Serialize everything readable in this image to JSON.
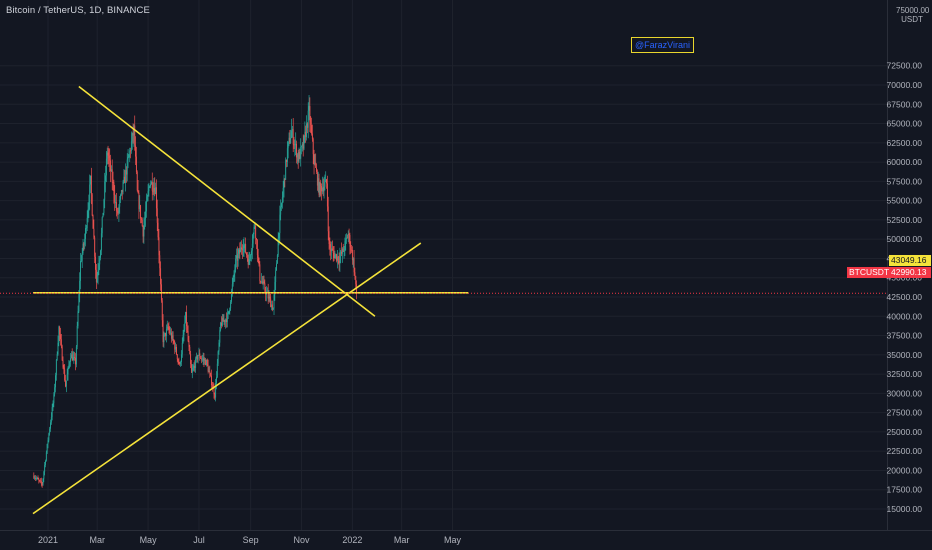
{
  "title": "Bitcoin / TetherUS, 1D, BINANCE",
  "watermark": "@FarazVirani",
  "axis_unit": "USDT",
  "axis_unit_top": "75000.00",
  "price_tags": {
    "level": "43049.16",
    "symbol": "BTCUSDT",
    "last": "42990.13"
  },
  "colors": {
    "background": "#131722",
    "up": "#26a69a",
    "down": "#ef5350",
    "trendline": "#f5e33a",
    "last_price": "#f23645",
    "grid": "#1e222d"
  },
  "chart_data": {
    "type": "candlestick",
    "symbol": "BTCUSDT",
    "interval": "1D",
    "exchange": "BINANCE",
    "x_ticks": [
      "2021",
      "Mar",
      "May",
      "Jul",
      "Sep",
      "Nov",
      "2022",
      "Mar",
      "May"
    ],
    "x_tick_dates": [
      "2021-01-01",
      "2021-03-01",
      "2021-05-01",
      "2021-07-01",
      "2021-09-01",
      "2021-11-01",
      "2022-01-01",
      "2022-03-01",
      "2022-05-01"
    ],
    "y_ticks": [
      15000,
      17500,
      20000,
      22500,
      25000,
      27500,
      30000,
      32500,
      35000,
      37500,
      40000,
      42500,
      45000,
      47500,
      50000,
      52500,
      55000,
      57500,
      60000,
      62500,
      65000,
      67500,
      70000,
      72500
    ],
    "y_range": [
      12500,
      76000
    ],
    "grid": true,
    "price_path": [
      [
        "2020-12-15",
        19300
      ],
      [
        "2020-12-25",
        18200
      ],
      [
        "2021-01-01",
        24000
      ],
      [
        "2021-01-08",
        29500
      ],
      [
        "2021-01-14",
        38500
      ],
      [
        "2021-01-22",
        31000
      ],
      [
        "2021-01-28",
        35000
      ],
      [
        "2021-02-03",
        34000
      ],
      [
        "2021-02-09",
        47000
      ],
      [
        "2021-02-14",
        50000
      ],
      [
        "2021-02-21",
        57500
      ],
      [
        "2021-02-28",
        44500
      ],
      [
        "2021-03-05",
        49000
      ],
      [
        "2021-03-13",
        61500
      ],
      [
        "2021-03-20",
        57000
      ],
      [
        "2021-03-25",
        53000
      ],
      [
        "2021-04-05",
        59000
      ],
      [
        "2021-04-14",
        64200
      ],
      [
        "2021-04-18",
        56000
      ],
      [
        "2021-04-25",
        51000
      ],
      [
        "2021-05-03",
        57500
      ],
      [
        "2021-05-10",
        56500
      ],
      [
        "2021-05-13",
        50500
      ],
      [
        "2021-05-19",
        37000
      ],
      [
        "2021-05-25",
        38500
      ],
      [
        "2021-06-01",
        36500
      ],
      [
        "2021-06-08",
        33500
      ],
      [
        "2021-06-15",
        40000
      ],
      [
        "2021-06-22",
        32500
      ],
      [
        "2021-06-30",
        35000
      ],
      [
        "2021-07-10",
        34000
      ],
      [
        "2021-07-20",
        29800
      ],
      [
        "2021-07-27",
        39000
      ],
      [
        "2021-08-05",
        40000
      ],
      [
        "2021-08-14",
        47000
      ],
      [
        "2021-08-23",
        49500
      ],
      [
        "2021-08-30",
        47000
      ],
      [
        "2021-09-06",
        52000
      ],
      [
        "2021-09-12",
        45000
      ],
      [
        "2021-09-20",
        43000
      ],
      [
        "2021-09-28",
        41000
      ],
      [
        "2021-10-05",
        51500
      ],
      [
        "2021-10-15",
        61500
      ],
      [
        "2021-10-20",
        64000
      ],
      [
        "2021-10-28",
        60500
      ],
      [
        "2021-11-03",
        62000
      ],
      [
        "2021-11-10",
        66500
      ],
      [
        "2021-11-16",
        60200
      ],
      [
        "2021-11-22",
        56500
      ],
      [
        "2021-11-28",
        57000
      ],
      [
        "2021-12-01",
        57200
      ],
      [
        "2021-12-04",
        49000
      ],
      [
        "2021-12-10",
        48000
      ],
      [
        "2021-12-16",
        47500
      ],
      [
        "2021-12-21",
        48500
      ],
      [
        "2021-12-27",
        50700
      ],
      [
        "2022-01-02",
        47200
      ],
      [
        "2022-01-06",
        43049
      ]
    ],
    "trendlines": [
      {
        "name": "descending",
        "from": [
          "2021-02-07",
          69800
        ],
        "to": [
          "2022-01-28",
          40000
        ]
      },
      {
        "name": "ascending",
        "from": [
          "2020-12-14",
          14400
        ],
        "to": [
          "2022-03-24",
          49500
        ]
      },
      {
        "name": "horizontal",
        "from": [
          "2020-12-14",
          43049
        ],
        "to": [
          "2022-05-20",
          43049
        ]
      }
    ],
    "last_price": 42990.13,
    "level_price": 43049.16
  }
}
